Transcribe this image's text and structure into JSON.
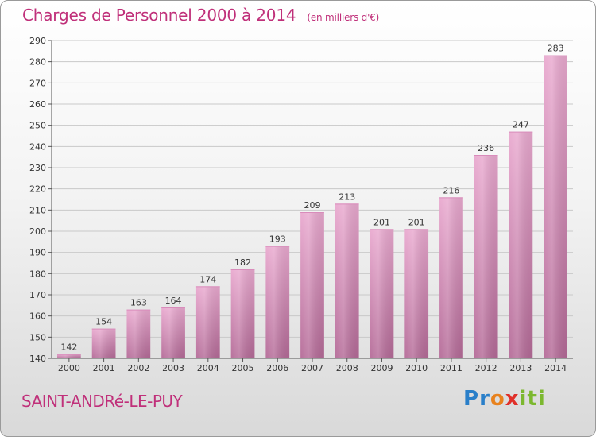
{
  "header": {
    "title": "Charges de Personnel 2000 à 2014",
    "subtitle": "(en milliers d'€)"
  },
  "footer": {
    "city": "SAINT-ANDRé-LE-PUY",
    "logo_letters": [
      "P",
      "r",
      "o",
      "x",
      "i",
      "t",
      "i"
    ]
  },
  "colors": {
    "title": "#c0307a",
    "bar_light": "#e9a9cf",
    "bar_dark": "#b46a97"
  },
  "chart_data": {
    "type": "bar",
    "title": "Charges de Personnel 2000 à 2014",
    "subtitle": "(en milliers d'€)",
    "categories": [
      "2000",
      "2001",
      "2002",
      "2003",
      "2004",
      "2005",
      "2006",
      "2007",
      "2008",
      "2009",
      "2010",
      "2011",
      "2012",
      "2013",
      "2014"
    ],
    "values": [
      142,
      154,
      163,
      164,
      174,
      182,
      193,
      209,
      213,
      201,
      201,
      216,
      236,
      247,
      283
    ],
    "ylim": [
      140,
      290
    ],
    "yticks": [
      140,
      150,
      160,
      170,
      180,
      190,
      200,
      210,
      220,
      230,
      240,
      250,
      260,
      270,
      280,
      290
    ],
    "grid": true,
    "data_labels": true
  }
}
